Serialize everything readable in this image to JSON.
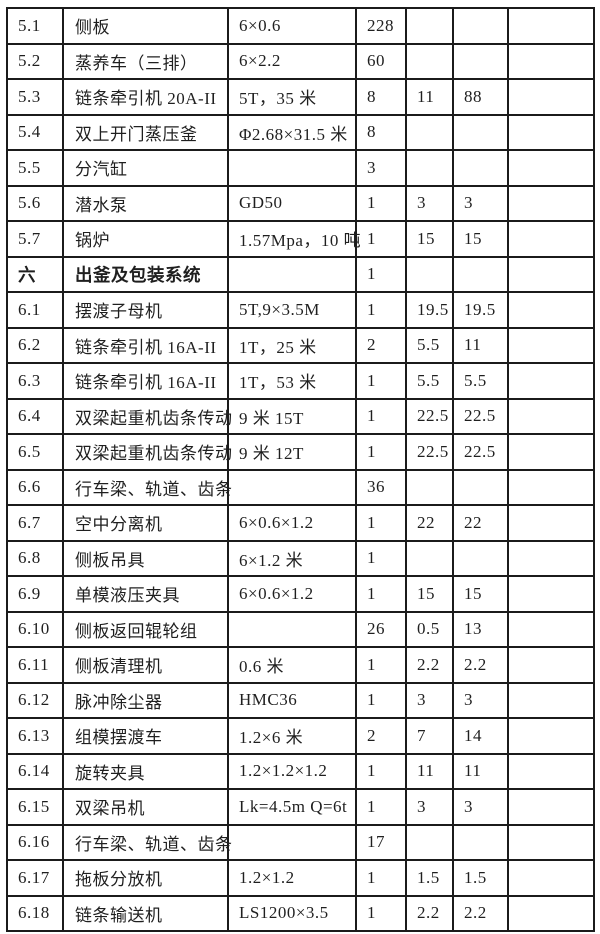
{
  "page": {
    "background_color": "#ffffff",
    "border_color": "#1b1b1b",
    "text_color": "#1f1f1f"
  },
  "table": {
    "rows": [
      {
        "bold": false,
        "cells": [
          "5.1",
          "侧板",
          "6×0.6",
          "228",
          "",
          "",
          ""
        ]
      },
      {
        "bold": false,
        "cells": [
          "5.2",
          "蒸养车（三排）",
          "6×2.2",
          "60",
          "",
          "",
          ""
        ]
      },
      {
        "bold": false,
        "cells": [
          "5.3",
          "链条牵引机 20A-II",
          "5T，35 米",
          "8",
          "11",
          "88",
          ""
        ]
      },
      {
        "bold": false,
        "cells": [
          "5.4",
          "双上开门蒸压釜",
          "Φ2.68×31.5 米",
          "8",
          "",
          "",
          ""
        ]
      },
      {
        "bold": false,
        "cells": [
          "5.5",
          "分汽缸",
          "",
          "3",
          "",
          "",
          ""
        ]
      },
      {
        "bold": false,
        "cells": [
          "5.6",
          "潜水泵",
          "GD50",
          "1",
          "3",
          "3",
          ""
        ]
      },
      {
        "bold": false,
        "cells": [
          "5.7",
          "锅炉",
          "1.57Mpa，10 吨",
          "1",
          "15",
          "15",
          ""
        ]
      },
      {
        "bold": true,
        "cells": [
          "六",
          "出釜及包装系统",
          "",
          "1",
          "",
          "",
          ""
        ]
      },
      {
        "bold": false,
        "cells": [
          "6.1",
          "摆渡子母机",
          "5T,9×3.5M",
          "1",
          "19.5",
          "19.5",
          ""
        ]
      },
      {
        "bold": false,
        "cells": [
          "6.2",
          "链条牵引机 16A-II",
          "1T，25 米",
          "2",
          "5.5",
          "11",
          ""
        ]
      },
      {
        "bold": false,
        "cells": [
          "6.3",
          "链条牵引机 16A-II",
          "1T，53 米",
          "1",
          "5.5",
          "5.5",
          ""
        ]
      },
      {
        "bold": false,
        "cells": [
          "6.4",
          "双梁起重机齿条传动",
          "9 米 15T",
          "1",
          "22.5",
          "22.5",
          ""
        ]
      },
      {
        "bold": false,
        "cells": [
          "6.5",
          "双梁起重机齿条传动",
          "9 米 12T",
          "1",
          "22.5",
          "22.5",
          ""
        ]
      },
      {
        "bold": false,
        "cells": [
          "6.6",
          "行车梁、轨道、齿条",
          "",
          "36",
          "",
          "",
          ""
        ]
      },
      {
        "bold": false,
        "cells": [
          "6.7",
          "空中分离机",
          "6×0.6×1.2",
          "1",
          "22",
          "22",
          ""
        ]
      },
      {
        "bold": false,
        "cells": [
          "6.8",
          "侧板吊具",
          "6×1.2 米",
          "1",
          "",
          "",
          ""
        ]
      },
      {
        "bold": false,
        "cells": [
          "6.9",
          "单模液压夹具",
          "6×0.6×1.2",
          "1",
          "15",
          "15",
          ""
        ]
      },
      {
        "bold": false,
        "cells": [
          "6.10",
          "侧板返回辊轮组",
          "",
          "26",
          "0.5",
          "13",
          ""
        ]
      },
      {
        "bold": false,
        "cells": [
          "6.11",
          "侧板清理机",
          "0.6 米",
          "1",
          "2.2",
          "2.2",
          ""
        ]
      },
      {
        "bold": false,
        "cells": [
          "6.12",
          "脉冲除尘器",
          "HMC36",
          "1",
          "3",
          "3",
          ""
        ]
      },
      {
        "bold": false,
        "cells": [
          "6.13",
          "组模摆渡车",
          "1.2×6 米",
          "2",
          "7",
          "14",
          ""
        ]
      },
      {
        "bold": false,
        "cells": [
          "6.14",
          "旋转夹具",
          "1.2×1.2×1.2",
          "1",
          "11",
          "11",
          ""
        ]
      },
      {
        "bold": false,
        "cells": [
          "6.15",
          "双梁吊机",
          "Lk=4.5m Q=6t",
          "1",
          "3",
          "3",
          ""
        ]
      },
      {
        "bold": false,
        "cells": [
          "6.16",
          "行车梁、轨道、齿条",
          "",
          "17",
          "",
          "",
          ""
        ]
      },
      {
        "bold": false,
        "cells": [
          "6.17",
          "拖板分放机",
          "1.2×1.2",
          "1",
          "1.5",
          "1.5",
          ""
        ]
      },
      {
        "bold": false,
        "cells": [
          "6.18",
          "链条输送机",
          "LS1200×3.5",
          "1",
          "2.2",
          "2.2",
          ""
        ]
      }
    ]
  }
}
